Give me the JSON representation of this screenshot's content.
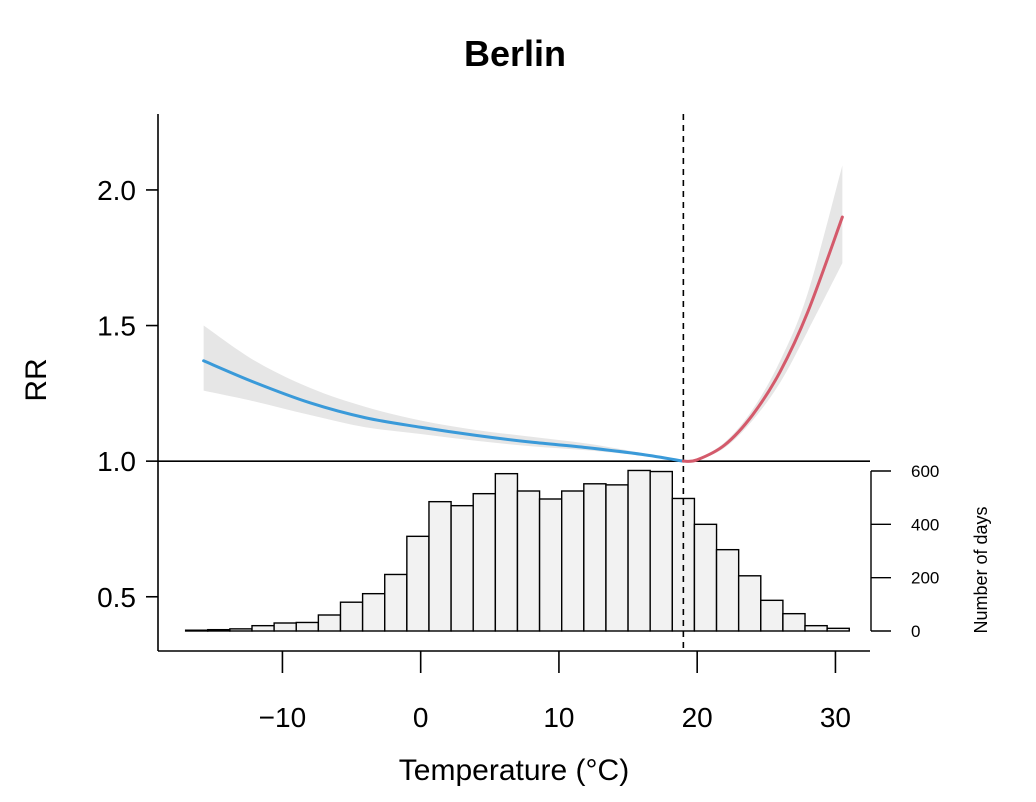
{
  "chart_data": {
    "type": "line",
    "title": "Berlin",
    "xlabel": "Temperature (°C)",
    "ylabel": "RR",
    "xlim": [
      -19,
      32.5
    ],
    "ylim": [
      0.3,
      2.28
    ],
    "x_ticks": [
      -10,
      0,
      10,
      20,
      30
    ],
    "x_tick_labels": [
      "−10",
      "0",
      "10",
      "20",
      "30"
    ],
    "y_ticks": [
      0.5,
      1.0,
      1.5,
      2.0
    ],
    "y_tick_labels": [
      "0.5",
      "1.0",
      "1.5",
      "2.0"
    ],
    "reference_line_y": 1.0,
    "mmt": 19,
    "colors": {
      "cold": "#3a9ad9",
      "heat": "#d45a6b",
      "ci": "#e6e6e6",
      "bar_fill": "#f2f2f2"
    },
    "series": [
      {
        "segment": "cold",
        "x": [
          -15.7,
          -12,
          -8,
          -4,
          0,
          4,
          8,
          12,
          16,
          19
        ],
        "y": [
          1.37,
          1.29,
          1.215,
          1.16,
          1.125,
          1.095,
          1.07,
          1.05,
          1.025,
          1.0
        ],
        "lower": [
          1.26,
          1.22,
          1.17,
          1.125,
          1.1,
          1.075,
          1.055,
          1.04,
          1.02,
          1.0
        ],
        "upper": [
          1.5,
          1.37,
          1.27,
          1.2,
          1.15,
          1.115,
          1.09,
          1.065,
          1.03,
          1.0
        ]
      },
      {
        "segment": "heat",
        "x": [
          19,
          20,
          22,
          24,
          26,
          28,
          30.5
        ],
        "y": [
          1.0,
          1.005,
          1.06,
          1.17,
          1.33,
          1.55,
          1.9
        ],
        "lower": [
          1.0,
          1.003,
          1.05,
          1.15,
          1.29,
          1.48,
          1.73
        ],
        "upper": [
          1.0,
          1.008,
          1.07,
          1.19,
          1.37,
          1.62,
          2.09
        ]
      }
    ],
    "histogram": {
      "ylabel": "Number of days",
      "ylim": [
        0,
        600
      ],
      "y_ticks": [
        0,
        200,
        400,
        600
      ],
      "y_tick_labels": [
        "0",
        "200",
        "400",
        "600"
      ],
      "bin_edges": [
        -17,
        -15.4,
        -13.8,
        -12.2,
        -10.6,
        -9,
        -7.4,
        -5.8,
        -4.2,
        -2.6,
        -1,
        0.6,
        2.2,
        3.8,
        5.4,
        7,
        8.6,
        10.2,
        11.8,
        13.4,
        15,
        16.6,
        18.2,
        19.8,
        21.4,
        23,
        24.6,
        26.2,
        27.8,
        29.4,
        31
      ],
      "counts": [
        3,
        5,
        8,
        20,
        30,
        32,
        60,
        108,
        140,
        212,
        355,
        485,
        470,
        515,
        590,
        525,
        495,
        525,
        552,
        548,
        602,
        598,
        497,
        400,
        305,
        207,
        115,
        65,
        20,
        10
      ]
    }
  }
}
